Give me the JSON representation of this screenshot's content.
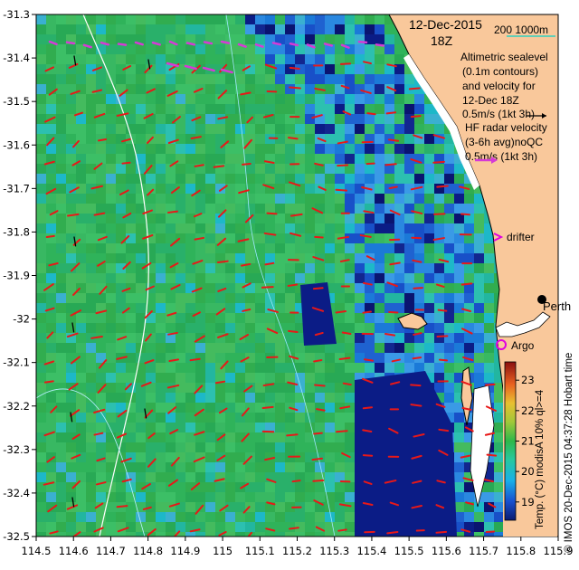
{
  "map": {
    "lon_ticks": [
      "114.5",
      "114.6",
      "114.7",
      "114.8",
      "114.9",
      "115",
      "115.1",
      "115.2",
      "115.3",
      "115.4",
      "115.5",
      "115.6",
      "115.7",
      "115.8",
      "115.9"
    ],
    "lat_ticks": [
      "-31.3",
      "-31.4",
      "-31.5",
      "-31.6",
      "-31.7",
      "-31.8",
      "-31.9",
      "-32",
      "-32.1",
      "-32.2",
      "-32.3",
      "-32.4",
      "-32.5"
    ],
    "lon_range": [
      114.5,
      115.9
    ],
    "lat_range": [
      -32.5,
      -31.3
    ],
    "colors": {
      "land": "#f9c89b",
      "sea_warm": "#2fb35a",
      "sea_cool": "#1a6dd6",
      "deep": "#0c1f8a",
      "altimetry_vector": "#e81818",
      "hf_vector": "#d63ad6",
      "argo": "#e000e0"
    }
  },
  "header": {
    "date": "12-Dec-2015",
    "hour": "18Z",
    "bathy_scale": "200  1000m"
  },
  "legend": {
    "alt_line1": "Altimetric sealevel",
    "alt_line2": "(0.1m contours)",
    "alt_line3": "and velocity for",
    "alt_line4": "12-Dec 18Z",
    "alt_scale": "0.5m/s (1kt 3h)",
    "hf_line1": "HF radar velocity",
    "hf_line2": "(3-6h avg)noQC",
    "hf_scale": "0.5m/s (1kt 3h)",
    "drifter": "drifter",
    "perth": "Perth",
    "argo": "Argo"
  },
  "colorbar": {
    "ticks": [
      "23",
      "22",
      "21",
      "20",
      "19"
    ],
    "min": 18.4,
    "max": 23.6,
    "title": "Temp. (°C) modisA 10% ql>=4"
  },
  "credit": "© IMOS 20-Dec-2015 04:37:28 Hobart time"
}
